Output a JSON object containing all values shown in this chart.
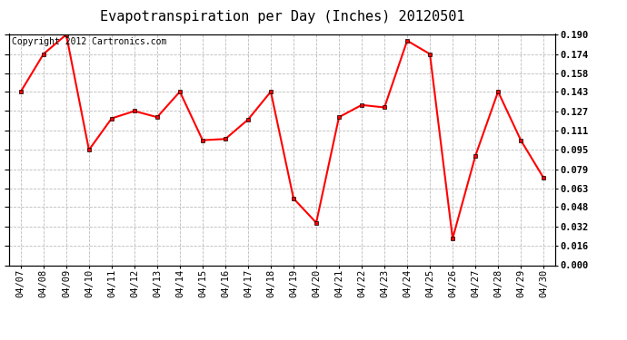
{
  "title": "Evapotranspiration per Day (Inches) 20120501",
  "copyright_text": "Copyright 2012 Cartronics.com",
  "dates": [
    "04/07",
    "04/08",
    "04/09",
    "04/10",
    "04/11",
    "04/12",
    "04/13",
    "04/14",
    "04/15",
    "04/16",
    "04/17",
    "04/18",
    "04/19",
    "04/20",
    "04/21",
    "04/22",
    "04/23",
    "04/24",
    "04/25",
    "04/26",
    "04/27",
    "04/28",
    "04/29",
    "04/30"
  ],
  "values": [
    0.143,
    0.174,
    0.19,
    0.095,
    0.121,
    0.127,
    0.122,
    0.143,
    0.103,
    0.104,
    0.12,
    0.143,
    0.055,
    0.035,
    0.122,
    0.132,
    0.13,
    0.185,
    0.174,
    0.022,
    0.09,
    0.143,
    0.103,
    0.072
  ],
  "line_color": "#ff0000",
  "marker": "s",
  "marker_size": 3,
  "bg_color": "#ffffff",
  "grid_color": "#bbbbbb",
  "ylim": [
    0.0,
    0.1905
  ],
  "yticks": [
    0.0,
    0.016,
    0.032,
    0.048,
    0.063,
    0.079,
    0.095,
    0.111,
    0.127,
    0.143,
    0.158,
    0.174,
    0.19
  ],
  "title_fontsize": 11,
  "copyright_fontsize": 7,
  "tick_fontsize": 7.5
}
